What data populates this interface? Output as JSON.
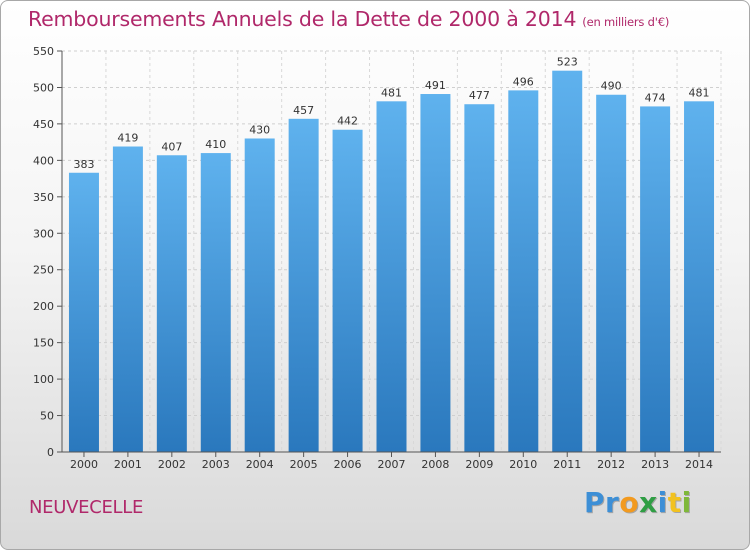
{
  "title": "Remboursements Annuels de la Dette de 2000 à 2014",
  "unit_note": "(en milliers d'€)",
  "commune": "NEUVECELLE",
  "brand": {
    "letters": [
      "P",
      "r",
      "o",
      "x",
      "i",
      "t",
      "i"
    ],
    "colors": [
      "#3d8fd6",
      "#3d8fd6",
      "#f29a1f",
      "#2f9e44",
      "#3d8fd6",
      "#f2c21f",
      "#7fb83a"
    ]
  },
  "chart_data": {
    "type": "bar",
    "categories": [
      "2000",
      "2001",
      "2002",
      "2003",
      "2004",
      "2005",
      "2006",
      "2007",
      "2008",
      "2009",
      "2010",
      "2011",
      "2012",
      "2013",
      "2014"
    ],
    "values": [
      383,
      419,
      407,
      410,
      430,
      457,
      442,
      481,
      491,
      477,
      496,
      523,
      490,
      474,
      481
    ],
    "ylim": [
      0,
      550
    ],
    "yticks": [
      0,
      50,
      100,
      150,
      200,
      250,
      300,
      350,
      400,
      450,
      500,
      550
    ],
    "grid": true,
    "bar_color": "#3b8fd8",
    "bar_color_light": "#5fb2ee"
  }
}
